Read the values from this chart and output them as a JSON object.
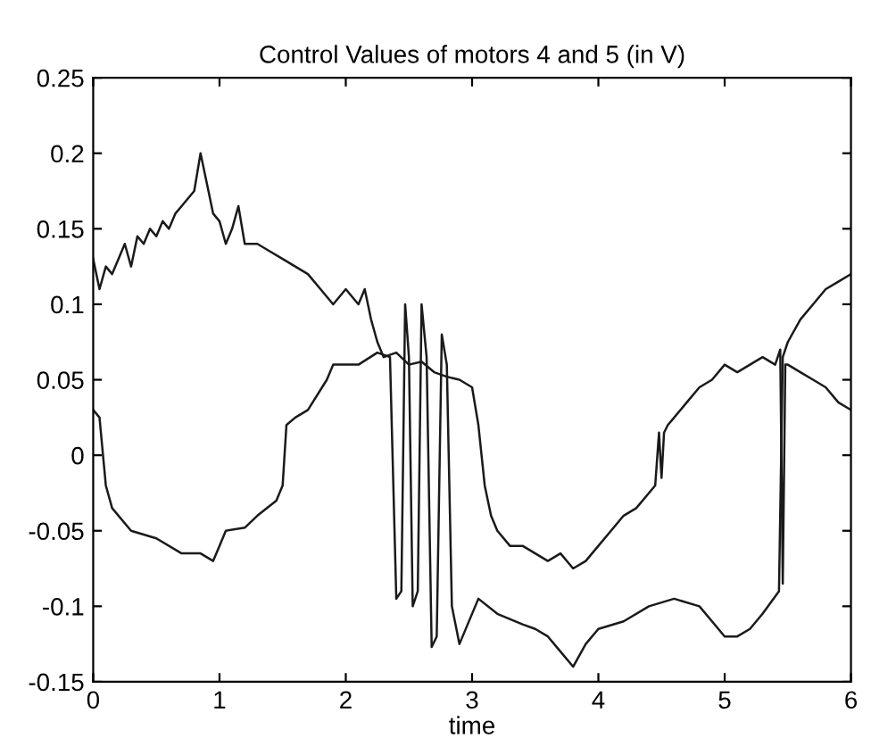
{
  "chart_data": {
    "type": "line",
    "title": "Control Values of motors 4 and 5 (in V)",
    "xlabel": "time",
    "xlim": [
      0,
      6
    ],
    "ylim": [
      -0.15,
      0.25
    ],
    "xticks": [
      0,
      1,
      2,
      3,
      4,
      5,
      6
    ],
    "yticks": [
      -0.15,
      -0.1,
      -0.05,
      0,
      0.05,
      0.1,
      0.15,
      0.2,
      0.25
    ],
    "grid": false,
    "marker": "none",
    "line_style": "solid",
    "series": [
      {
        "color": "#1a1a1a",
        "x": [
          0,
          0.05,
          0.1,
          0.15,
          0.2,
          0.25,
          0.3,
          0.35,
          0.4,
          0.45,
          0.5,
          0.55,
          0.6,
          0.65,
          0.7,
          0.75,
          0.8,
          0.85,
          0.9,
          0.95,
          1.0,
          1.05,
          1.1,
          1.15,
          1.2,
          1.3,
          1.4,
          1.5,
          1.6,
          1.7,
          1.8,
          1.9,
          2.0,
          2.1,
          2.15,
          2.2,
          2.25,
          2.3,
          2.4,
          2.5,
          2.6,
          2.7,
          2.8,
          2.9,
          3.0,
          3.05,
          3.1,
          3.15,
          3.2,
          3.3,
          3.4,
          3.5,
          3.6,
          3.7,
          3.8,
          3.9,
          4.0,
          4.1,
          4.2,
          4.3,
          4.4,
          4.45,
          4.48,
          4.5,
          4.52,
          4.55,
          4.6,
          4.7,
          4.8,
          4.9,
          5.0,
          5.1,
          5.2,
          5.3,
          5.4,
          5.44,
          5.46,
          5.48,
          5.5,
          5.6,
          5.7,
          5.8,
          5.9,
          6.0
        ],
        "values": [
          0.13,
          0.11,
          0.125,
          0.12,
          0.13,
          0.14,
          0.125,
          0.145,
          0.14,
          0.15,
          0.145,
          0.155,
          0.15,
          0.16,
          0.165,
          0.17,
          0.175,
          0.2,
          0.18,
          0.16,
          0.155,
          0.14,
          0.15,
          0.165,
          0.14,
          0.14,
          0.135,
          0.13,
          0.125,
          0.12,
          0.11,
          0.1,
          0.11,
          0.1,
          0.11,
          0.09,
          0.075,
          0.065,
          0.068,
          0.06,
          0.062,
          0.055,
          0.052,
          0.05,
          0.045,
          0.02,
          -0.02,
          -0.04,
          -0.05,
          -0.06,
          -0.06,
          -0.065,
          -0.07,
          -0.065,
          -0.075,
          -0.07,
          -0.06,
          -0.05,
          -0.04,
          -0.035,
          -0.025,
          -0.02,
          0.015,
          -0.015,
          0.015,
          0.02,
          0.025,
          0.035,
          0.045,
          0.05,
          0.06,
          0.055,
          0.06,
          0.065,
          0.06,
          0.07,
          -0.085,
          0.06,
          0.06,
          0.055,
          0.05,
          0.045,
          0.035,
          0.03
        ]
      },
      {
        "color": "#1a1a1a",
        "x": [
          0,
          0.05,
          0.1,
          0.15,
          0.3,
          0.5,
          0.7,
          0.85,
          0.95,
          1.0,
          1.05,
          1.2,
          1.3,
          1.45,
          1.5,
          1.53,
          1.6,
          1.7,
          1.85,
          1.9,
          2.1,
          2.25,
          2.35,
          2.4,
          2.44,
          2.47,
          2.5,
          2.53,
          2.57,
          2.6,
          2.64,
          2.68,
          2.72,
          2.76,
          2.8,
          2.84,
          2.9,
          3.05,
          3.2,
          3.4,
          3.5,
          3.6,
          3.7,
          3.8,
          3.9,
          4.0,
          4.2,
          4.4,
          4.6,
          4.8,
          4.9,
          5.0,
          5.1,
          5.2,
          5.3,
          5.43,
          5.46,
          5.5,
          5.6,
          5.7,
          5.8,
          5.9,
          6.0
        ],
        "values": [
          0.03,
          0.025,
          -0.02,
          -0.035,
          -0.05,
          -0.055,
          -0.065,
          -0.065,
          -0.07,
          -0.06,
          -0.05,
          -0.048,
          -0.04,
          -0.03,
          -0.02,
          0.02,
          0.025,
          0.03,
          0.05,
          0.06,
          0.06,
          0.068,
          0.065,
          -0.095,
          -0.09,
          0.1,
          0.065,
          -0.1,
          -0.09,
          0.1,
          0.065,
          -0.127,
          -0.12,
          0.08,
          0.06,
          -0.1,
          -0.125,
          -0.095,
          -0.105,
          -0.112,
          -0.115,
          -0.12,
          -0.13,
          -0.14,
          -0.125,
          -0.115,
          -0.11,
          -0.1,
          -0.095,
          -0.1,
          -0.11,
          -0.12,
          -0.12,
          -0.115,
          -0.105,
          -0.09,
          0.065,
          0.075,
          0.09,
          0.1,
          0.11,
          0.115,
          0.12
        ]
      }
    ]
  }
}
